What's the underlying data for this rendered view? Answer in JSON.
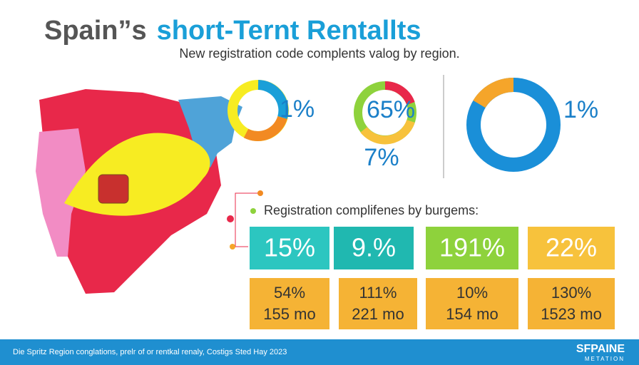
{
  "header": {
    "title_part1": "Spain”s",
    "title_part2": "short-Ternt Rentallts",
    "subtitle": "New registration code complents valog by region."
  },
  "donuts": {
    "labels": [
      "1%",
      "65%",
      "7%",
      "1%"
    ]
  },
  "section": {
    "heading": "Registration complifenes by burgems:"
  },
  "tiles": {
    "top": [
      "15%",
      "9.%",
      "191%",
      "22%"
    ],
    "bottom": [
      [
        "54%",
        "155 mo"
      ],
      [
        "111%",
        "221 mo"
      ],
      [
        "10%",
        "154 mo"
      ],
      [
        "130%",
        "1523 mo"
      ]
    ]
  },
  "footer": {
    "note": "Die Spritz Region conglations, prelr of or rentkal renaly, Costigs Sted Hay 2023",
    "logo": "SFPAINE",
    "logo_sub": "METATION"
  }
}
